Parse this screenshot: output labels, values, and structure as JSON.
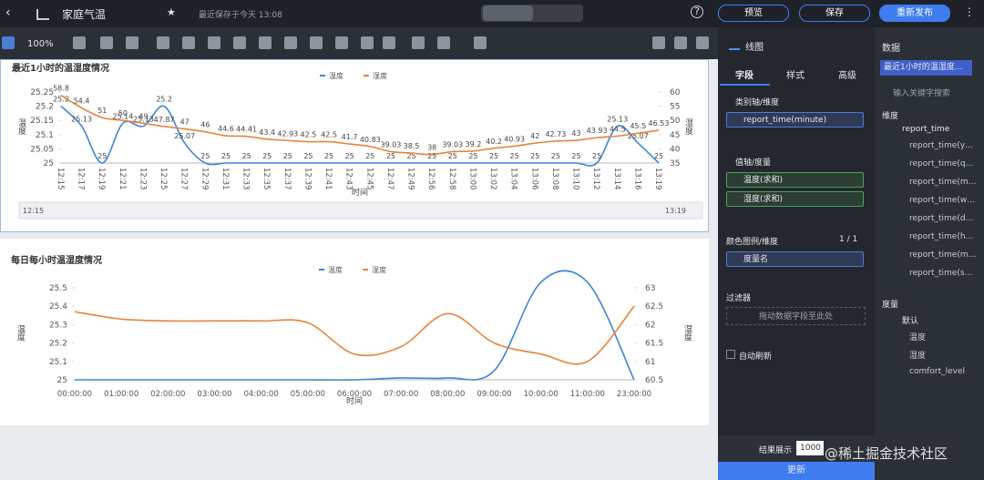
{
  "header": {
    "title": "家庭气温",
    "saved": "最近保存于今天 13:08",
    "buttons": [
      "预览",
      "保存",
      "重新发布"
    ]
  },
  "toolbar": {
    "zoom": "100%"
  },
  "chart_data": [
    {
      "type": "line",
      "title": "最近1小时的温湿度情况",
      "x_label": "时间",
      "y_label": "温度",
      "y2_label": "湿度",
      "categories": [
        "12:15",
        "12:17",
        "12:19",
        "12:21",
        "12:23",
        "12:25",
        "12:27",
        "12:29",
        "12:31",
        "12:33",
        "12:35",
        "12:37",
        "12:39",
        "12:41",
        "12:43",
        "12:45",
        "12:47",
        "12:49",
        "12:56",
        "12:58",
        "13:00",
        "13:02",
        "13:04",
        "13:06",
        "13:08",
        "13:10",
        "13:12",
        "13:14",
        "13:16",
        "13:19"
      ],
      "series": [
        {
          "name": "温度",
          "color": "#3d85d8",
          "values": [
            25.2,
            25.13,
            25,
            25.14,
            25.13,
            25.2,
            25.07,
            25,
            25,
            25,
            25,
            25,
            25,
            25,
            25,
            25,
            25,
            25,
            25,
            25,
            25,
            25,
            25,
            25,
            25,
            25,
            25,
            25.13,
            25.07,
            25
          ]
        },
        {
          "name": "湿度",
          "color": "#e8833a",
          "axis": "y2",
          "values": [
            58.8,
            54.4,
            51,
            50,
            49,
            47.87,
            47,
            46,
            44.6,
            44.41,
            43.4,
            42.93,
            42.5,
            42.5,
            41.7,
            40.83,
            39.03,
            38.5,
            38,
            39.03,
            39.2,
            40.2,
            40.93,
            42,
            42.73,
            43,
            43.93,
            44.5,
            45.5,
            46.53
          ]
        }
      ],
      "ylim": [
        25,
        25.25
      ],
      "yticks": [
        25,
        25.05,
        25.1,
        25.15,
        25.2,
        25.25
      ],
      "y2lim": [
        35,
        60
      ],
      "y2ticks": [
        35,
        40,
        45,
        50,
        55,
        60
      ],
      "data_labels": true,
      "zoom_slider": true
    },
    {
      "type": "line",
      "title": "每日每小时温湿度情况",
      "x_label": "时间",
      "y_label": "温度",
      "y2_label": "湿度",
      "categories": [
        "00:00:00",
        "01:00:00",
        "02:00:00",
        "03:00:00",
        "04:00:00",
        "05:00:00",
        "06:00:00",
        "07:00:00",
        "08:00:00",
        "09:00:00",
        "10:00:00",
        "11:00:00",
        "23:00:00"
      ],
      "series": [
        {
          "name": "温度",
          "color": "#3d85d8",
          "values": [
            25,
            25,
            25,
            25,
            25,
            25,
            25,
            25.01,
            25.01,
            25.05,
            25.53,
            25.53,
            25
          ]
        },
        {
          "name": "湿度",
          "color": "#e8833a",
          "axis": "y2",
          "values": [
            62.35,
            62.15,
            62.1,
            62.1,
            62.1,
            62.05,
            61.2,
            61.4,
            62.3,
            61.5,
            61.2,
            61,
            62.5
          ]
        }
      ],
      "ylim": [
        25,
        25.5
      ],
      "yticks": [
        25,
        25.1,
        25.2,
        25.3,
        25.4,
        25.5
      ],
      "y2lim": [
        60.5,
        63
      ],
      "y2ticks": [
        60.5,
        61,
        61.5,
        62,
        62.5,
        63
      ],
      "data_labels": false,
      "zoom_slider": false
    }
  ],
  "panel": {
    "chart_type": "线图",
    "tabs": [
      "字段",
      "样式",
      "高级"
    ],
    "category_axis": "类别轴/维度",
    "category_field": "report_time(minute)",
    "value_axis": "值轴/度量",
    "value_fields": [
      "温度(求和)",
      "湿度(求和)"
    ],
    "legend": "颜色图例/维度",
    "legend_count": "1 / 1",
    "legend_field": "度量名",
    "filter": "过滤器",
    "filter_hint": "拖动数据字段至此处",
    "auto_refresh": "自动刷新",
    "result_label": "结果展示",
    "result_value": "1000",
    "update": "更新"
  },
  "data_panel": {
    "title": "数据",
    "dataset": "最近1小时的温湿度...",
    "search": "输入关键字搜索",
    "dimensions": "维度",
    "dimension_root": "report_time",
    "dimension_items": [
      "report_time(year)",
      "report_time(quarter)",
      "report_time(month)",
      "report_time(week)",
      "report_time(day)",
      "report_time(hour)",
      "report_time(minute)",
      "report_time(second)"
    ],
    "measures": "度量",
    "measure_group": "默认",
    "measure_items": [
      "温度",
      "湿度",
      "comfort_level"
    ]
  },
  "watermark": "@稀土掘金技术社区"
}
